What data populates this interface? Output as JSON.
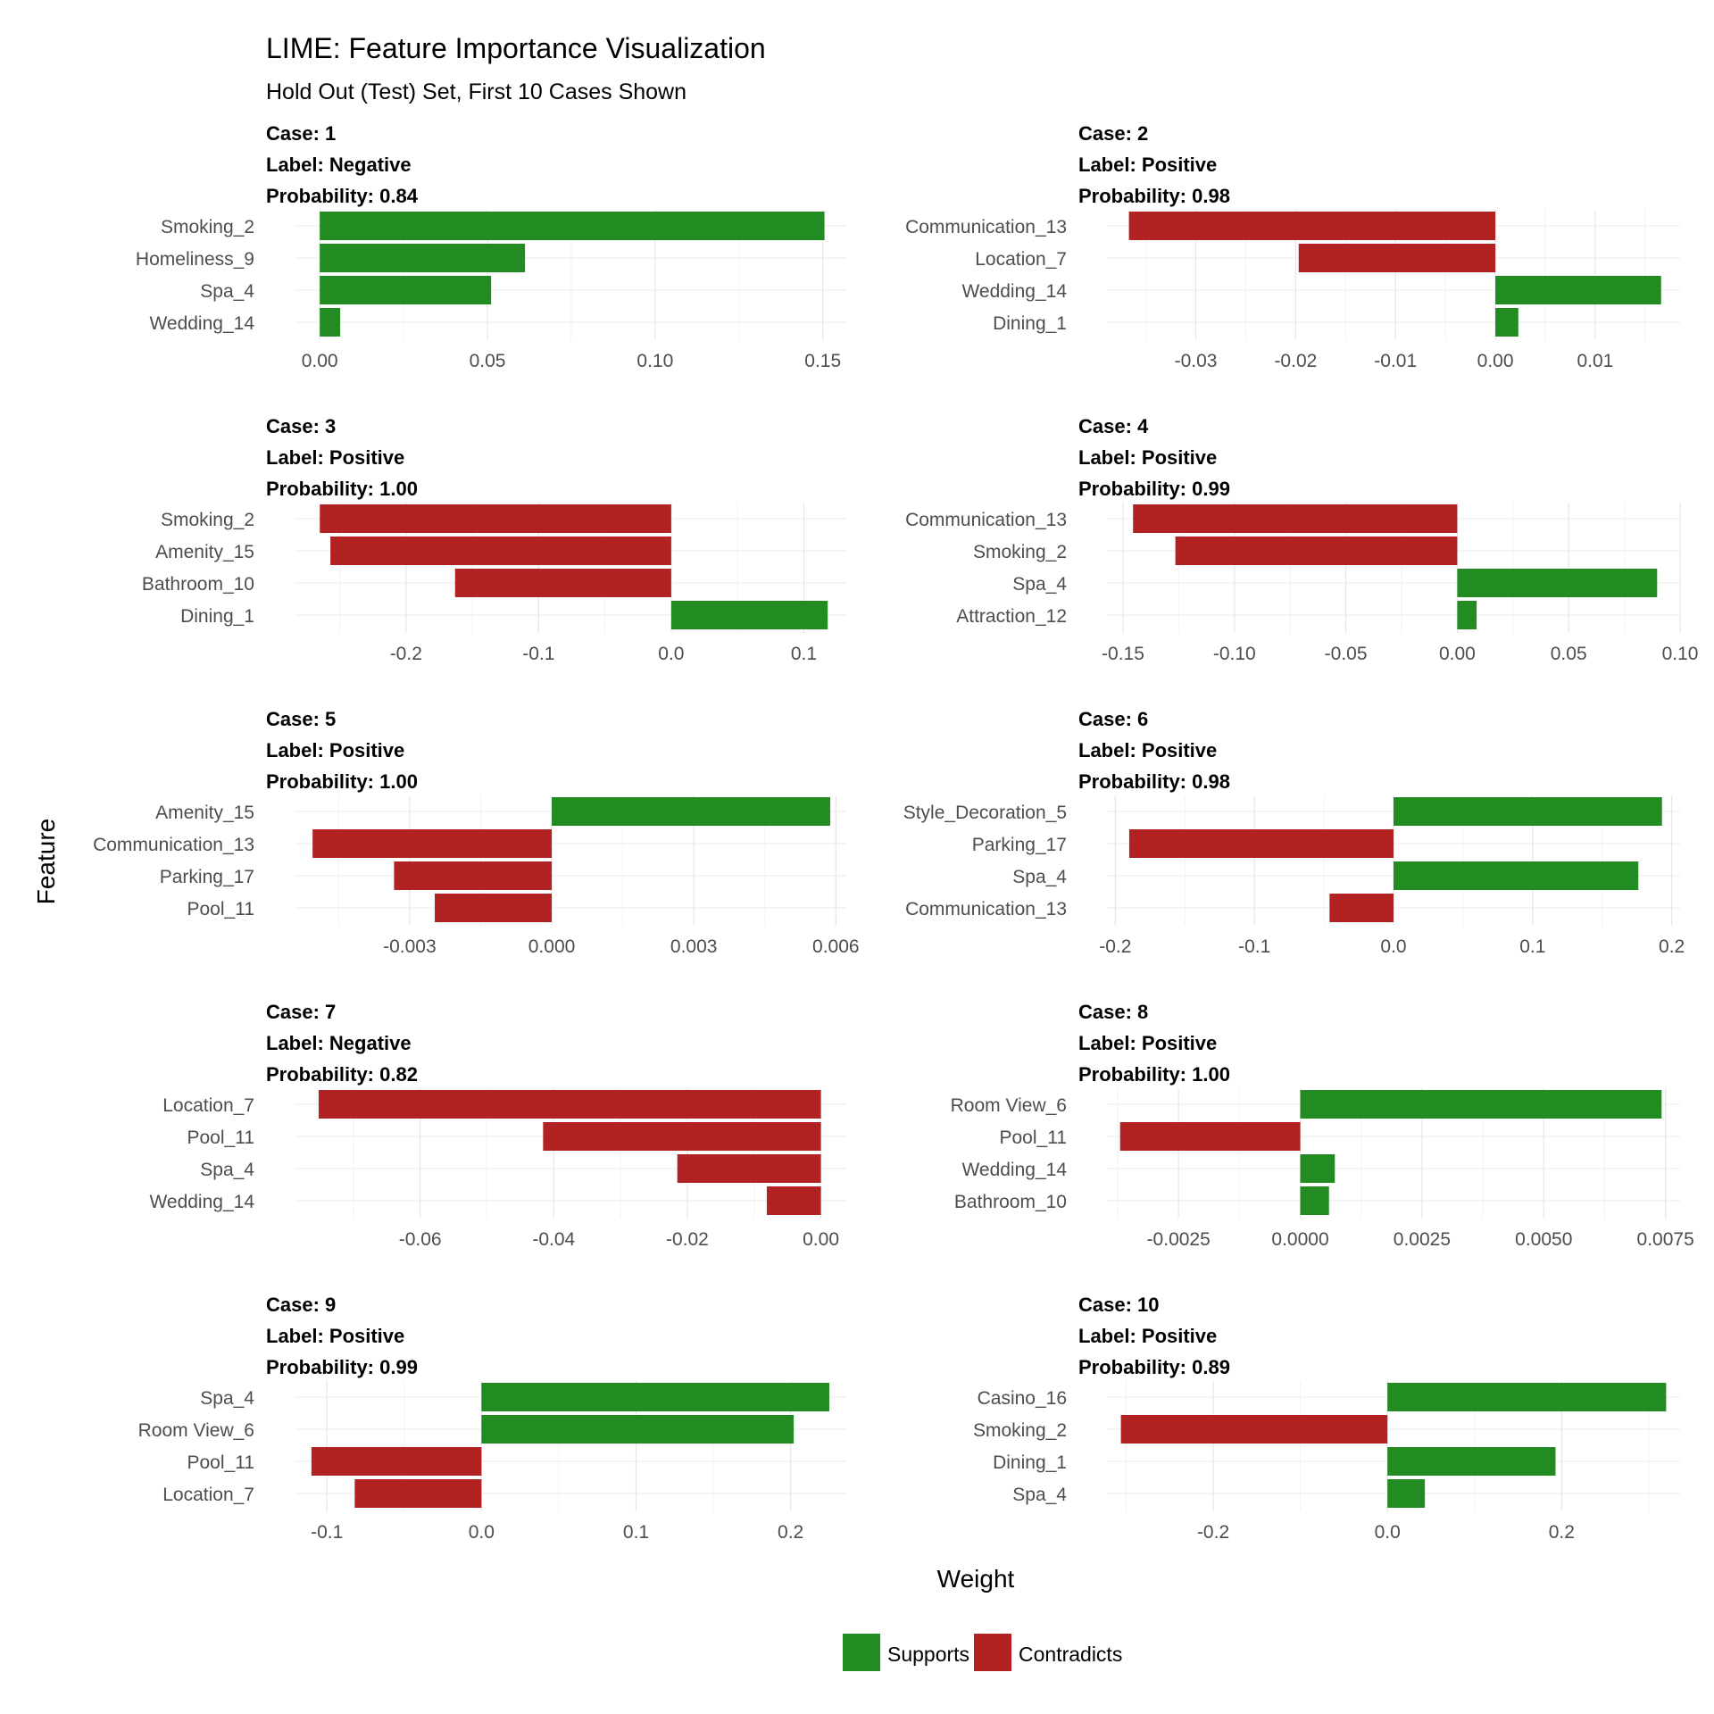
{
  "chart_data": {
    "type": "bar",
    "title": "LIME: Feature Importance Visualization",
    "subtitle": "Hold Out (Test) Set, First 10 Cases Shown",
    "xlabel": "Weight",
    "ylabel": "Feature",
    "legend": {
      "placement": "bottom",
      "entries": [
        {
          "label": "Supports",
          "color": "#228B22"
        },
        {
          "label": "Contradicts",
          "color": "#B22222"
        }
      ]
    },
    "grid": true,
    "panels": [
      {
        "case": "Case: 1",
        "label": "Label: Negative",
        "probability": "Probability: 0.84",
        "xlim": [
          -0.0075,
          0.157
        ],
        "ticks": [
          {
            "v": 0,
            "t": "0.00"
          },
          {
            "v": 0.05,
            "t": "0.05"
          },
          {
            "v": 0.1,
            "t": "0.10"
          },
          {
            "v": 0.15,
            "t": "0.15"
          }
        ],
        "features": [
          "Smoking_2",
          "Homeliness_9",
          "Spa_4",
          "Wedding_14"
        ],
        "weights": [
          0.1505,
          0.0612,
          0.0511,
          0.0061
        ]
      },
      {
        "case": "Case: 2",
        "label": "Label: Positive",
        "probability": "Probability: 0.98",
        "xlim": [
          -0.0389,
          0.0185
        ],
        "ticks": [
          {
            "v": -0.03,
            "t": "-0.03"
          },
          {
            "v": -0.02,
            "t": "-0.02"
          },
          {
            "v": -0.01,
            "t": "-0.01"
          },
          {
            "v": 0,
            "t": "0.00"
          },
          {
            "v": 0.01,
            "t": "0.01"
          }
        ],
        "features": [
          "Communication_13",
          "Location_7",
          "Wedding_14",
          "Dining_1"
        ],
        "weights": [
          -0.0367,
          -0.0197,
          0.0166,
          0.0023
        ]
      },
      {
        "case": "Case: 3",
        "label": "Label: Positive",
        "probability": "Probability: 1.00",
        "xlim": [
          -0.284,
          0.132
        ],
        "ticks": [
          {
            "v": -0.2,
            "t": "-0.2"
          },
          {
            "v": -0.1,
            "t": "-0.1"
          },
          {
            "v": 0,
            "t": "0.0"
          },
          {
            "v": 0.1,
            "t": "0.1"
          }
        ],
        "features": [
          "Smoking_2",
          "Amenity_15",
          "Bathroom_10",
          "Dining_1"
        ],
        "weights": [
          -0.265,
          -0.257,
          -0.163,
          0.118
        ]
      },
      {
        "case": "Case: 4",
        "label": "Label: Positive",
        "probability": "Probability: 0.99",
        "xlim": [
          -0.1572,
          0.1
        ],
        "ticks": [
          {
            "v": -0.15,
            "t": "-0.15"
          },
          {
            "v": -0.1,
            "t": "-0.10"
          },
          {
            "v": -0.05,
            "t": "-0.05"
          },
          {
            "v": 0,
            "t": "0.00"
          },
          {
            "v": 0.05,
            "t": "0.05"
          },
          {
            "v": 0.1,
            "t": "0.10"
          }
        ],
        "features": [
          "Communication_13",
          "Smoking_2",
          "Spa_4",
          "Attraction_12"
        ],
        "weights": [
          -0.1455,
          -0.1265,
          0.0897,
          0.0087
        ]
      },
      {
        "case": "Case: 5",
        "label": "Label: Positive",
        "probability": "Probability: 1.00",
        "xlim": [
          -0.00543,
          0.00622
        ],
        "ticks": [
          {
            "v": -0.003,
            "t": "-0.003"
          },
          {
            "v": 0,
            "t": "0.000"
          },
          {
            "v": 0.003,
            "t": "0.003"
          },
          {
            "v": 0.006,
            "t": "0.006"
          }
        ],
        "features": [
          "Amenity_15",
          "Communication_13",
          "Parking_17",
          "Pool_11"
        ],
        "weights": [
          0.00588,
          -0.00505,
          -0.00333,
          -0.00247
        ]
      },
      {
        "case": "Case: 6",
        "label": "Label: Positive",
        "probability": "Probability: 0.98",
        "xlim": [
          -0.206,
          0.206
        ],
        "ticks": [
          {
            "v": -0.2,
            "t": "-0.2"
          },
          {
            "v": -0.1,
            "t": "-0.1"
          },
          {
            "v": 0,
            "t": "0.0"
          },
          {
            "v": 0.1,
            "t": "0.1"
          },
          {
            "v": 0.2,
            "t": "0.2"
          }
        ],
        "features": [
          "Style_Decoration_5",
          "Parking_17",
          "Spa_4",
          "Communication_13"
        ],
        "weights": [
          0.193,
          -0.19,
          0.176,
          -0.046
        ]
      },
      {
        "case": "Case: 7",
        "label": "Label: Negative",
        "probability": "Probability: 0.82",
        "xlim": [
          -0.0788,
          0.0038
        ],
        "ticks": [
          {
            "v": -0.06,
            "t": "-0.06"
          },
          {
            "v": -0.04,
            "t": "-0.04"
          },
          {
            "v": -0.02,
            "t": "-0.02"
          },
          {
            "v": 0,
            "t": "0.00"
          }
        ],
        "features": [
          "Location_7",
          "Pool_11",
          "Spa_4",
          "Wedding_14"
        ],
        "weights": [
          -0.0752,
          -0.0416,
          -0.0215,
          -0.0081
        ]
      },
      {
        "case": "Case: 8",
        "label": "Label: Positive",
        "probability": "Probability: 1.00",
        "xlim": [
          -0.00397,
          0.0078
        ],
        "ticks": [
          {
            "v": -0.0025,
            "t": "-0.0025"
          },
          {
            "v": 0,
            "t": "0.0000"
          },
          {
            "v": 0.0025,
            "t": "0.0025"
          },
          {
            "v": 0.005,
            "t": "0.0050"
          },
          {
            "v": 0.0075,
            "t": "0.0075"
          }
        ],
        "features": [
          "Room View_6",
          "Pool_11",
          "Wedding_14",
          "Bathroom_10"
        ],
        "weights": [
          0.00742,
          -0.0037,
          0.00071,
          0.00059
        ]
      },
      {
        "case": "Case: 9",
        "label": "Label: Positive",
        "probability": "Probability: 0.99",
        "xlim": [
          -0.1209,
          0.236
        ],
        "ticks": [
          {
            "v": -0.1,
            "t": "-0.1"
          },
          {
            "v": 0,
            "t": "0.0"
          },
          {
            "v": 0.1,
            "t": "0.1"
          },
          {
            "v": 0.2,
            "t": "0.2"
          }
        ],
        "features": [
          "Spa_4",
          "Room View_6",
          "Pool_11",
          "Location_7"
        ],
        "weights": [
          0.225,
          0.202,
          -0.11,
          -0.082
        ]
      },
      {
        "case": "Case: 10",
        "label": "Label: Positive",
        "probability": "Probability: 0.89",
        "xlim": [
          -0.322,
          0.336
        ],
        "ticks": [
          {
            "v": -0.2,
            "t": "-0.2"
          },
          {
            "v": 0,
            "t": "0.0"
          },
          {
            "v": 0.2,
            "t": "0.2"
          }
        ],
        "features": [
          "Casino_16",
          "Smoking_2",
          "Dining_1",
          "Spa_4"
        ],
        "weights": [
          0.32,
          -0.306,
          0.193,
          0.043
        ]
      }
    ]
  }
}
